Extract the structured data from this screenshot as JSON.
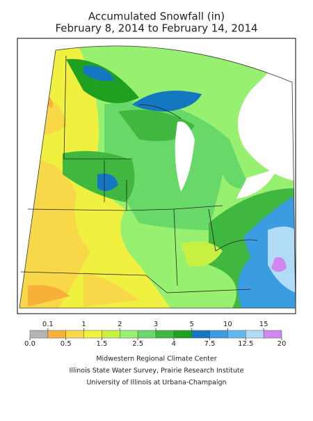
{
  "title": "Accumulated Snowfall (in)",
  "subtitle": "February 8, 2014 to February 14, 2014",
  "legend": {
    "boundaries": [
      {
        "value": 0,
        "label": "0.0"
      },
      0.1,
      0.5,
      1,
      1.5,
      2,
      2.5,
      3,
      4,
      5,
      7.5,
      10,
      12.5,
      15,
      20
    ],
    "colors": [
      "#b4b4b4",
      "#f8b038",
      "#f8d848",
      "#f0f040",
      "#c8f040",
      "#98f070",
      "#68d868",
      "#40b840",
      "#20a020",
      "#1478c0",
      "#3c9ce0",
      "#60b8ec",
      "#b0dcf8",
      "#d088f0"
    ]
  },
  "credits": [
    "Midwestern Regional Climate Center",
    "Illinois State Water Survey, Prairie Research Institute",
    "University of Illinois at Urbana-Champaign"
  ]
}
